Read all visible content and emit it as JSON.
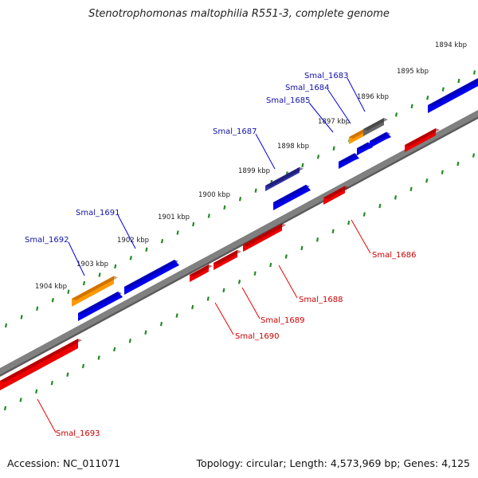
{
  "title": "Stenotrophomonas maltophilia R551-3, complete genome",
  "footer": {
    "accession_label": "Accession:",
    "accession": "NC_011071",
    "topology_label": "Topology:",
    "topology": "circular",
    "length_label": "Length:",
    "length": "4,573,969 bp",
    "genes_label": "Genes:",
    "genes": "4,125"
  },
  "colors": {
    "forward_label": "#1111aa",
    "reverse_label": "#cc0000",
    "forward_gene": "#0000ee",
    "reverse_gene": "#ee0000",
    "highlight_gene": "#ff9900",
    "pseudogene": "#666666",
    "selected_gene": "#3333aa",
    "backbone": "#808080",
    "ticks": "#228b22"
  },
  "kbp_ticks": [
    "1894 kbp",
    "1895 kbp",
    "1896 kbp",
    "1897 kbp",
    "1898 kbp",
    "1899 kbp",
    "1900 kbp",
    "1901 kbp",
    "1902 kbp",
    "1903 kbp",
    "1904 kbp"
  ],
  "genes": {
    "top": [
      "Smal_1683",
      "Smal_1684",
      "Smal_1685",
      "Smal_1687",
      "Smal_1691",
      "Smal_1692"
    ],
    "bottom": [
      "Smal_1686",
      "Smal_1688",
      "Smal_1689",
      "Smal_1690",
      "Smal_1693"
    ]
  }
}
